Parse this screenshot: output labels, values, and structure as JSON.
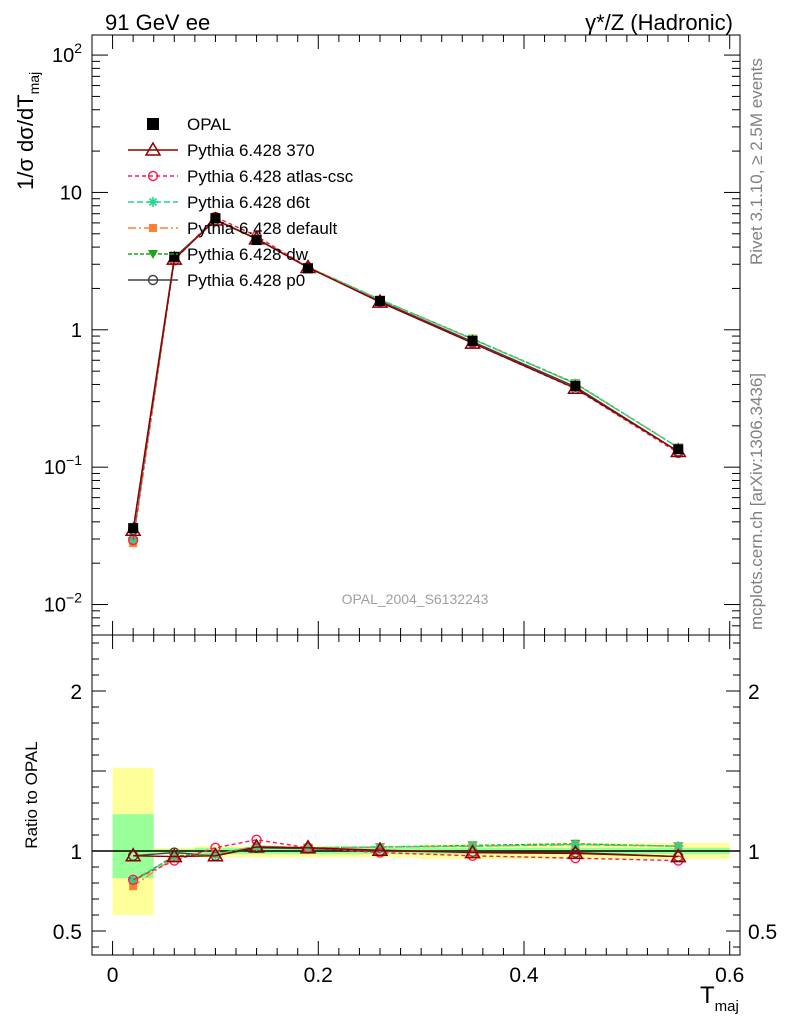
{
  "header": {
    "left": "91 GeV ee",
    "right": "γ*/Z (Hadronic)"
  },
  "side_labels": {
    "top": "Rivet 3.1.10, ≥ 2.5M events",
    "bottom": "mcplots.cern.ch [arXiv:1306.3436]"
  },
  "watermark": "OPAL_2004_S6132243",
  "colors": {
    "data": "#000000",
    "p370": "#8b0000",
    "atlas": "#ff1a4d",
    "d6t": "#1ad98c",
    "default": "#ff8033",
    "dw": "#1aa61a",
    "p0": "#404040",
    "band_inner": "#99ff99",
    "band_outer": "#ffff99"
  },
  "chart_data": [
    {
      "type": "line",
      "panel": "main",
      "ylabel": "1/σ dσ/dT",
      "ylabel_sub": "maj",
      "yscale": "log",
      "ylim": [
        0.006,
        140
      ],
      "xlim": [
        -0.02,
        0.61
      ],
      "yticks": [
        {
          "value": 0.01,
          "base": "10",
          "exp": "−2"
        },
        {
          "value": 0.1,
          "base": "10",
          "exp": "−1"
        },
        {
          "value": 1,
          "base": "1",
          "exp": ""
        },
        {
          "value": 10,
          "base": "10",
          "exp": ""
        },
        {
          "value": 100,
          "base": "10",
          "exp": "2"
        }
      ],
      "x": [
        0.02,
        0.06,
        0.1,
        0.14,
        0.19,
        0.26,
        0.35,
        0.45,
        0.55
      ],
      "data": {
        "name": "OPAL",
        "values": [
          0.036,
          3.4,
          6.5,
          4.5,
          2.8,
          1.62,
          0.83,
          0.39,
          0.135
        ],
        "bin_edges": [
          0.0,
          0.04,
          0.08,
          0.12,
          0.16,
          0.22,
          0.3,
          0.4,
          0.5,
          0.6
        ]
      },
      "series": [
        {
          "name": "Pythia 6.428 370",
          "key": "p370",
          "values": [
            0.0347,
            3.27,
            6.3,
            4.59,
            2.84,
            1.59,
            0.8,
            0.375,
            0.13
          ]
        },
        {
          "name": "Pythia 6.428 atlas-csc",
          "key": "atlas",
          "values": [
            0.0295,
            3.2,
            6.63,
            4.81,
            2.86,
            1.6,
            0.8,
            0.372,
            0.127
          ]
        },
        {
          "name": "Pythia 6.428 d6t",
          "key": "d6t",
          "values": [
            0.0295,
            3.27,
            6.37,
            4.63,
            2.86,
            1.66,
            0.855,
            0.405,
            0.139
          ]
        },
        {
          "name": "Pythia 6.428 default",
          "key": "default",
          "values": [
            0.028,
            3.27,
            6.37,
            4.63,
            2.86,
            1.66,
            0.855,
            0.405,
            0.139
          ]
        },
        {
          "name": "Pythia 6.428 dw",
          "key": "dw",
          "values": [
            0.029,
            3.3,
            6.37,
            4.63,
            2.86,
            1.66,
            0.86,
            0.408,
            0.139
          ]
        },
        {
          "name": "Pythia 6.428 p0",
          "key": "p0",
          "values": [
            0.035,
            3.36,
            6.3,
            4.59,
            2.84,
            1.62,
            0.82,
            0.385,
            0.13
          ]
        }
      ]
    },
    {
      "type": "line",
      "panel": "ratio",
      "ylabel": "Ratio to OPAL",
      "xlabel": "T",
      "xlabel_sub": "maj",
      "ylim": [
        0.35,
        2.35
      ],
      "xlim": [
        -0.02,
        0.61
      ],
      "yticks": [
        0.5,
        1,
        2
      ],
      "xticks": [
        0,
        0.2,
        0.4,
        0.6
      ],
      "xticklabels": [
        "0",
        "0.2",
        "0.4",
        "0.6"
      ],
      "yticklabels": [
        "0.5",
        "1",
        "2"
      ],
      "bands": [
        {
          "x0": 0.0,
          "x1": 0.04,
          "inner": [
            0.83,
            1.23
          ],
          "outer": [
            0.6,
            1.52
          ]
        },
        {
          "x0": 0.04,
          "x1": 0.08,
          "inner": [
            0.99,
            1.01
          ],
          "outer": [
            0.98,
            1.02
          ]
        },
        {
          "x0": 0.08,
          "x1": 0.12,
          "inner": [
            0.98,
            1.02
          ],
          "outer": [
            0.96,
            1.03
          ]
        },
        {
          "x0": 0.12,
          "x1": 0.16,
          "inner": [
            0.98,
            1.02
          ],
          "outer": [
            0.96,
            1.03
          ]
        },
        {
          "x0": 0.16,
          "x1": 0.22,
          "inner": [
            0.98,
            1.02
          ],
          "outer": [
            0.96,
            1.03
          ]
        },
        {
          "x0": 0.22,
          "x1": 0.3,
          "inner": [
            0.98,
            1.02
          ],
          "outer": [
            0.96,
            1.03
          ]
        },
        {
          "x0": 0.3,
          "x1": 0.4,
          "inner": [
            0.98,
            1.02
          ],
          "outer": [
            0.95,
            1.04
          ]
        },
        {
          "x0": 0.4,
          "x1": 0.5,
          "inner": [
            0.98,
            1.02
          ],
          "outer": [
            0.95,
            1.05
          ]
        },
        {
          "x0": 0.5,
          "x1": 0.6,
          "inner": [
            0.98,
            1.02
          ],
          "outer": [
            0.95,
            1.05
          ]
        }
      ],
      "x": [
        0.02,
        0.06,
        0.1,
        0.14,
        0.19,
        0.26,
        0.35,
        0.45,
        0.55
      ],
      "series": [
        {
          "name": "Pythia 6.428 370",
          "key": "p370",
          "values": [
            0.97,
            0.965,
            0.97,
            1.025,
            1.02,
            1.005,
            0.99,
            0.985,
            0.965
          ]
        },
        {
          "name": "Pythia 6.428 atlas-csc",
          "key": "atlas",
          "values": [
            0.82,
            0.94,
            1.02,
            1.07,
            1.02,
            0.99,
            0.97,
            0.955,
            0.94
          ]
        },
        {
          "name": "Pythia 6.428 d6t",
          "key": "d6t",
          "values": [
            0.82,
            0.96,
            0.98,
            1.03,
            1.02,
            1.025,
            1.03,
            1.04,
            1.03
          ]
        },
        {
          "name": "Pythia 6.428 default",
          "key": "default",
          "values": [
            0.78,
            0.96,
            0.98,
            1.03,
            1.02,
            1.025,
            1.03,
            1.04,
            1.03
          ]
        },
        {
          "name": "Pythia 6.428 dw",
          "key": "dw",
          "values": [
            0.81,
            0.97,
            0.98,
            1.03,
            1.02,
            1.025,
            1.035,
            1.045,
            1.03
          ]
        },
        {
          "name": "Pythia 6.428 p0",
          "key": "p0",
          "values": [
            0.97,
            0.99,
            0.97,
            1.02,
            1.015,
            1.0,
            0.995,
            0.99,
            0.965
          ]
        }
      ]
    }
  ]
}
